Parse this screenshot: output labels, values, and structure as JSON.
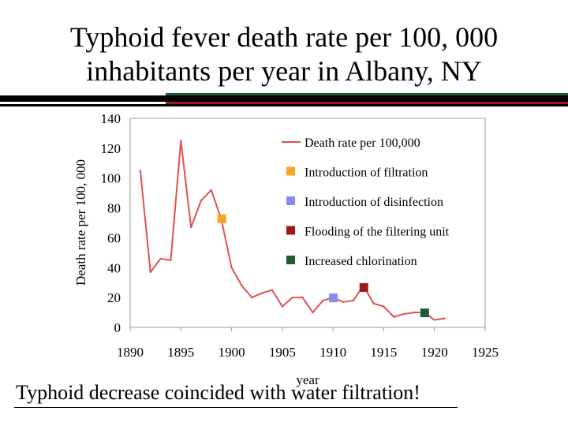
{
  "slide": {
    "title_line1": "Typhoid fever death rate per 100, 000",
    "title_line2": "inhabitants per year in Albany, NY",
    "caption": "Typhoid decrease coincided with water filtration!",
    "accent_colors": {
      "green": "#1e5a36",
      "red": "#a01818"
    }
  },
  "chart_data": {
    "type": "line",
    "title": "",
    "xlabel": "year",
    "ylabel": "Death rate per 100, 000",
    "xlim": [
      1890,
      1925
    ],
    "ylim": [
      0,
      140
    ],
    "x_ticks": [
      1890,
      1895,
      1900,
      1905,
      1910,
      1915,
      1920,
      1925
    ],
    "y_ticks": [
      0,
      20,
      40,
      60,
      80,
      100,
      120,
      140
    ],
    "grid": false,
    "legend_position": "top-right",
    "series": [
      {
        "name": "Death rate per 100,000",
        "color": "#e05050",
        "x": [
          1891,
          1892,
          1893,
          1894,
          1895,
          1896,
          1897,
          1898,
          1899,
          1900,
          1901,
          1902,
          1903,
          1904,
          1905,
          1906,
          1907,
          1908,
          1909,
          1910,
          1911,
          1912,
          1913,
          1914,
          1915,
          1916,
          1917,
          1918,
          1919,
          1920,
          1921
        ],
        "y": [
          105,
          37,
          46,
          45,
          125,
          67,
          85,
          92,
          72,
          40,
          28,
          20,
          23,
          25,
          14,
          20,
          20,
          10,
          18,
          20,
          17,
          18,
          28,
          16,
          14,
          7,
          9,
          10,
          10,
          5,
          6
        ]
      }
    ],
    "markers": [
      {
        "label": "Introduction of filtration",
        "color": "#f5a623",
        "x": 1899,
        "y": 73
      },
      {
        "label": "Introduction of disinfection",
        "color": "#8a8af0",
        "x": 1910,
        "y": 20
      },
      {
        "label": "Flooding of the filtering unit",
        "color": "#a01818",
        "x": 1913,
        "y": 27
      },
      {
        "label": "Increased chlorination",
        "color": "#1e5a36",
        "x": 1919,
        "y": 10
      }
    ],
    "legend": [
      {
        "label": "Death rate per 100,000",
        "kind": "line",
        "color": "#e05050"
      },
      {
        "label": "Introduction of filtration",
        "kind": "square",
        "color": "#f5a623"
      },
      {
        "label": "Introduction of disinfection",
        "kind": "square",
        "color": "#8a8af0"
      },
      {
        "label": "Flooding of the filtering unit",
        "kind": "square",
        "color": "#a01818"
      },
      {
        "label": "Increased chlorination",
        "kind": "square",
        "color": "#1e5a36"
      }
    ]
  }
}
